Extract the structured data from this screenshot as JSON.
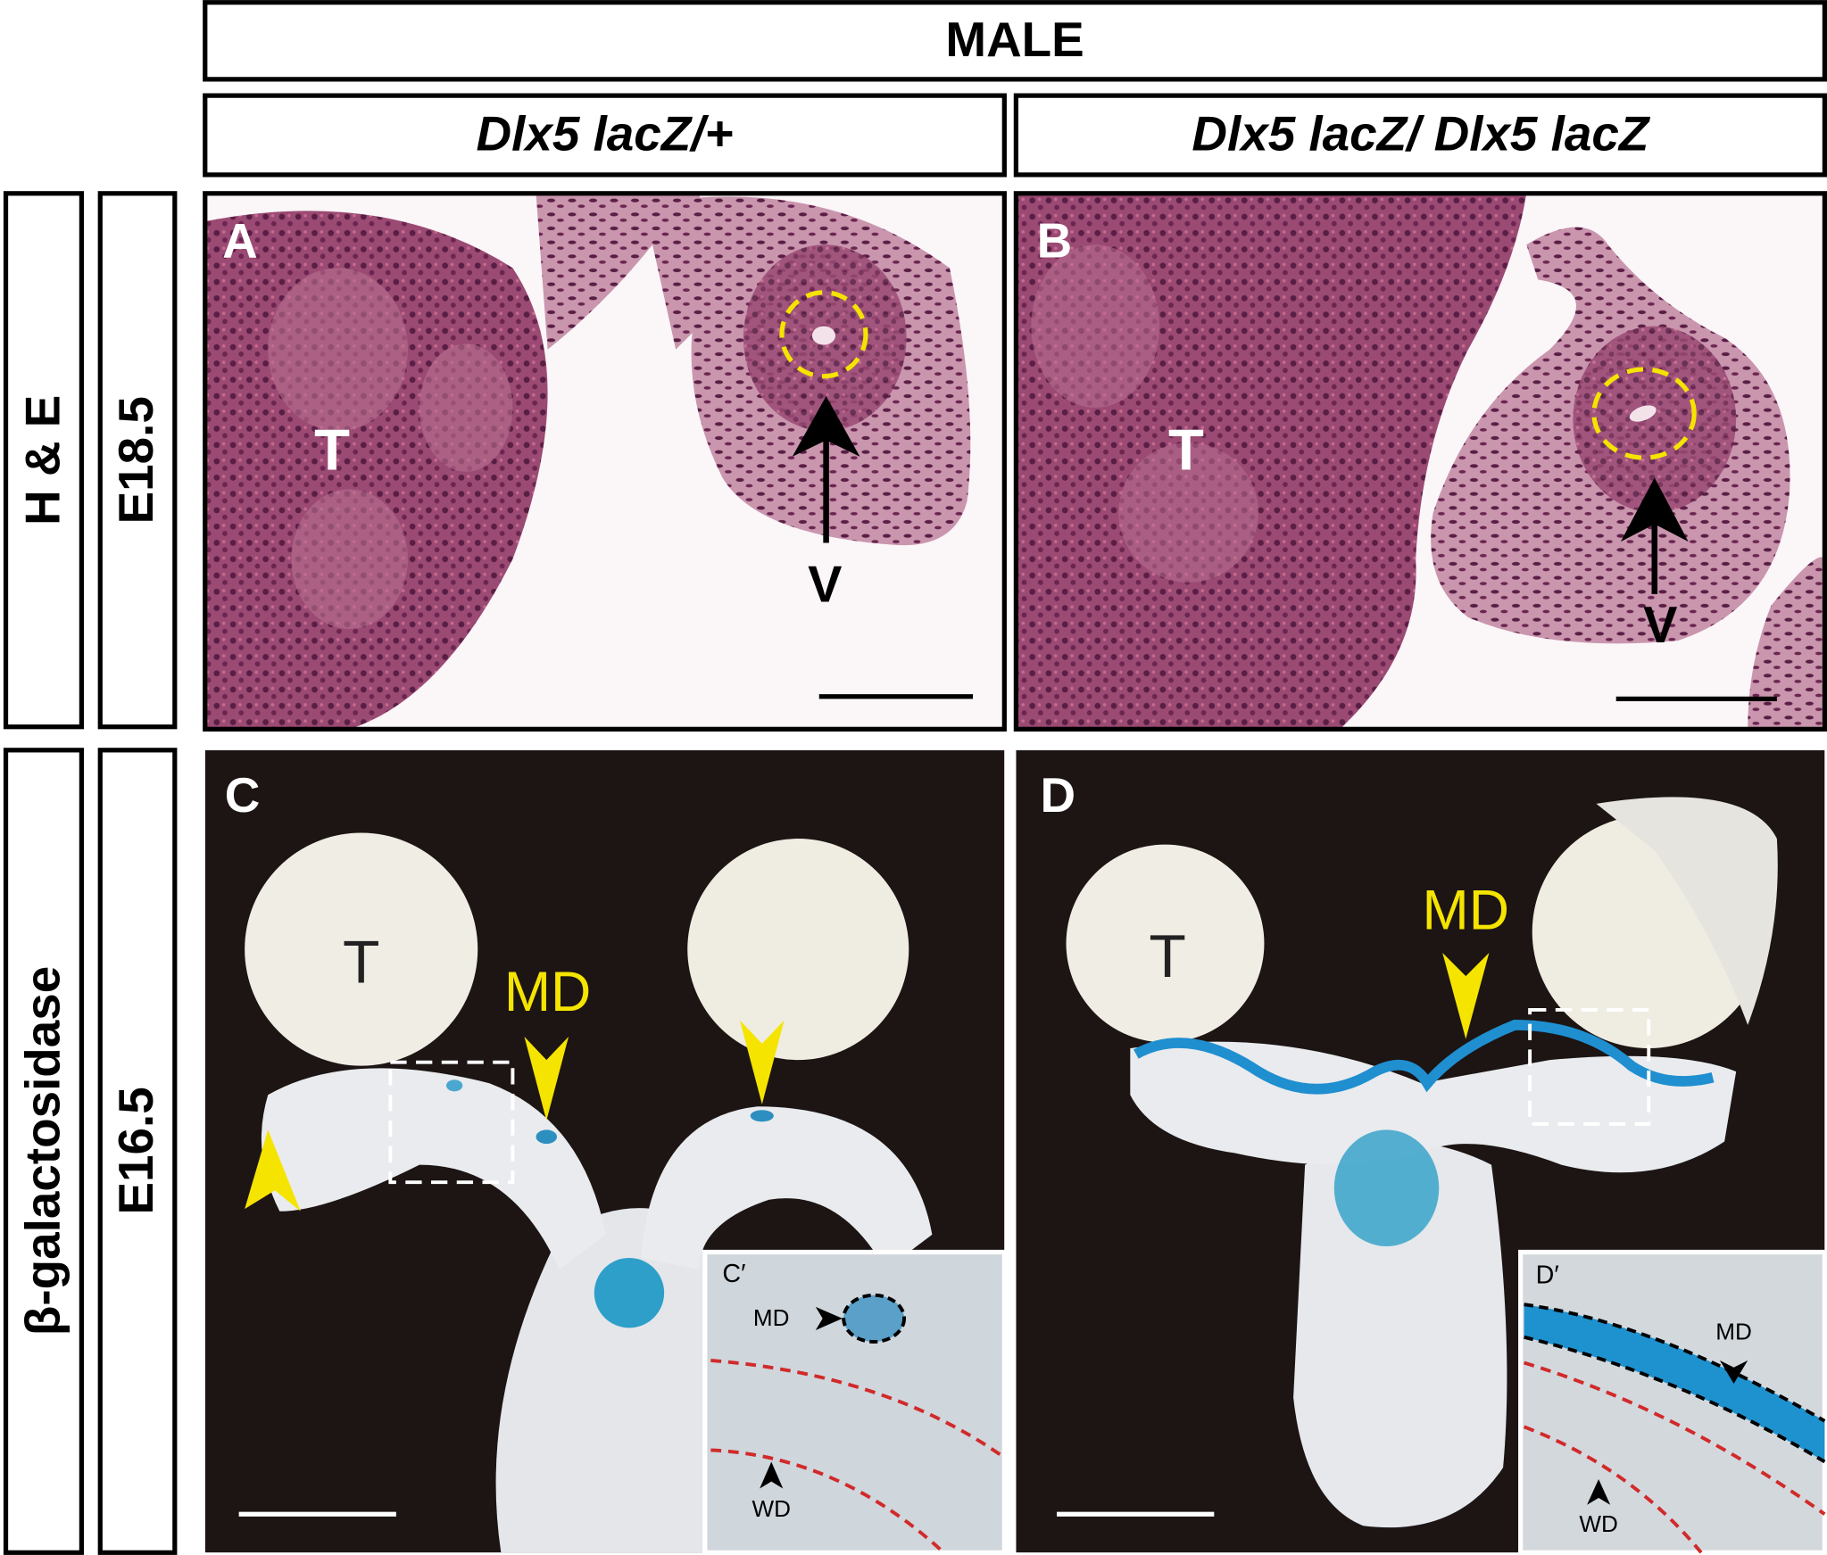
{
  "header": {
    "title": "MALE",
    "columns": [
      "Dlx5 lacZ/+",
      "Dlx5 lacZ/ Dlx5 lacZ"
    ]
  },
  "rows": [
    {
      "stain": "H & E",
      "stage": "E18.5"
    },
    {
      "stain": "β-galactosidase",
      "stage": "E16.5"
    }
  ],
  "panels": [
    {
      "label": "A",
      "annotations": [
        "T",
        "V"
      ]
    },
    {
      "label": "B",
      "annotations": [
        "T",
        "V"
      ]
    },
    {
      "label": "C",
      "annotations": [
        "T",
        "MD"
      ],
      "inset": {
        "label": "C′",
        "annotations": [
          "MD",
          "WD"
        ]
      }
    },
    {
      "label": "D",
      "annotations": [
        "T",
        "MD"
      ],
      "inset": {
        "label": "D′",
        "annotations": [
          "MD",
          "WD"
        ]
      }
    }
  ]
}
